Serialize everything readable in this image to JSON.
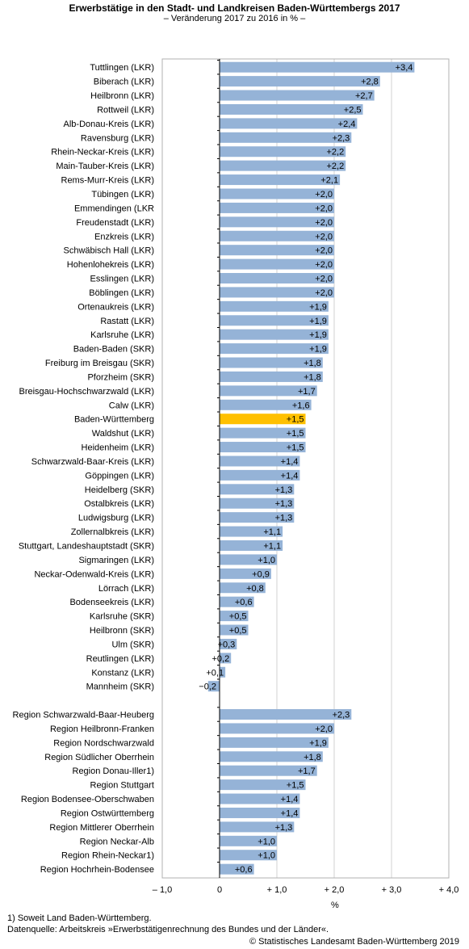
{
  "chart_data": {
    "type": "bar",
    "orientation": "horizontal",
    "title": "Erwerbstätige in den Stadt- und Landkreisen Baden-Württembergs 2017",
    "subtitle": "– Veränderung 2017 zu 2016 in % –",
    "xlabel": "%",
    "xlim": [
      -1.0,
      4.0
    ],
    "xticks": [
      "– 1,0",
      "0",
      "+ 1,0",
      "+ 2,0",
      "+ 3,0",
      "+ 4,0"
    ],
    "xtick_values": [
      -1,
      0,
      1,
      2,
      3,
      4
    ],
    "bar_color": "#95b3d7",
    "highlight_color": "#ffc000",
    "highlight_category": "Baden-Württemberg",
    "groups": [
      {
        "categories": [
          "Tuttlingen (LKR)",
          "Biberach (LKR)",
          "Heilbronn (LKR)",
          "Rottweil (LKR)",
          "Alb-Donau-Kreis (LKR)",
          "Ravensburg (LKR)",
          "Rhein-Neckar-Kreis (LKR)",
          "Main-Tauber-Kreis (LKR)",
          "Rems-Murr-Kreis (LKR)",
          "Tübingen (LKR)",
          "Emmendingen (LKR",
          "Freudenstadt (LKR)",
          "Enzkreis (LKR)",
          "Schwäbisch Hall (LKR)",
          "Hohenlohekreis (LKR)",
          "Esslingen (LKR)",
          "Böblingen (LKR)",
          "Ortenaukreis (LKR)",
          "Rastatt (LKR)",
          "Karlsruhe (LKR)",
          "Baden-Baden (SKR)",
          "Freiburg im Breisgau (SKR)",
          "Pforzheim (SKR)",
          "Breisgau-Hochschwarzwald (LKR)",
          "Calw (LKR)",
          "Baden-Württemberg",
          "Waldshut (LKR)",
          "Heidenheim (LKR)",
          "Schwarzwald-Baar-Kreis (LKR)",
          "Göppingen (LKR)",
          "Heidelberg (SKR)",
          "Ostalbkreis (LKR)",
          "Ludwigsburg (LKR)",
          "Zollernalbkreis (LKR)",
          "Stuttgart, Landeshauptstadt (SKR)",
          "Sigmaringen (LKR)",
          "Neckar-Odenwald-Kreis (LKR)",
          "Lörrach (LKR)",
          "Bodenseekreis (LKR)",
          "Karlsruhe (SKR)",
          "Heilbronn (SKR)",
          "Ulm (SKR)",
          "Reutlingen (LKR)",
          "Konstanz (LKR)",
          "Mannheim (SKR)"
        ],
        "values": [
          3.4,
          2.8,
          2.7,
          2.5,
          2.4,
          2.3,
          2.2,
          2.2,
          2.1,
          2.0,
          2.0,
          2.0,
          2.0,
          2.0,
          2.0,
          2.0,
          2.0,
          1.9,
          1.9,
          1.9,
          1.9,
          1.8,
          1.8,
          1.7,
          1.6,
          1.5,
          1.5,
          1.5,
          1.4,
          1.4,
          1.3,
          1.3,
          1.3,
          1.1,
          1.1,
          1.0,
          0.9,
          0.8,
          0.6,
          0.5,
          0.5,
          0.3,
          0.2,
          0.1,
          -0.2
        ],
        "value_labels": [
          "+3,4",
          "+2,8",
          "+2,7",
          "+2,5",
          "+2,4",
          "+2,3",
          "+2,2",
          "+2,2",
          "+2,1",
          "+2,0",
          "+2,0",
          "+2,0",
          "+2,0",
          "+2,0",
          "+2,0",
          "+2,0",
          "+2,0",
          "+1,9",
          "+1,9",
          "+1,9",
          "+1,9",
          "+1,8",
          "+1,8",
          "+1,7",
          "+1,6",
          "+1,5",
          "+1,5",
          "+1,5",
          "+1,4",
          "+1,4",
          "+1,3",
          "+1,3",
          "+1,3",
          "+1,1",
          "+1,1",
          "+1,0",
          "+0,9",
          "+0,8",
          "+0,6",
          "+0,5",
          "+0,5",
          "+0,3",
          "+0,2",
          "+0,1",
          "−0,2"
        ]
      },
      {
        "categories": [
          "Region Schwarzwald-Baar-Heuberg",
          "Region Heilbronn-Franken",
          "Region Nordschwarzwald",
          "Region Südlicher Oberrhein",
          "Region Donau-Iller1)",
          "Region Stuttgart",
          "Region Bodensee-Oberschwaben",
          "Region Ostwürttemberg",
          "Region Mittlerer Oberrhein",
          "Region Neckar-Alb",
          "Region Rhein-Neckar1)",
          "Region Hochrhein-Bodensee"
        ],
        "values": [
          2.3,
          2.0,
          1.9,
          1.8,
          1.7,
          1.5,
          1.4,
          1.4,
          1.3,
          1.0,
          1.0,
          0.6
        ],
        "value_labels": [
          "+2,3",
          "+2,0",
          "+1,9",
          "+1,8",
          "+1,7",
          "+1,5",
          "+1,4",
          "+1,4",
          "+1,3",
          "+1,0",
          "+1,0",
          "+0,6"
        ]
      }
    ]
  },
  "footnote": "1) Soweit Land Baden-Württemberg.",
  "source": "Datenquelle: Arbeitskreis »Erwerbstätigenrechnung des Bundes und der Länder«.",
  "copyright": "© Statistisches Landesamt Baden-Württemberg 2019"
}
